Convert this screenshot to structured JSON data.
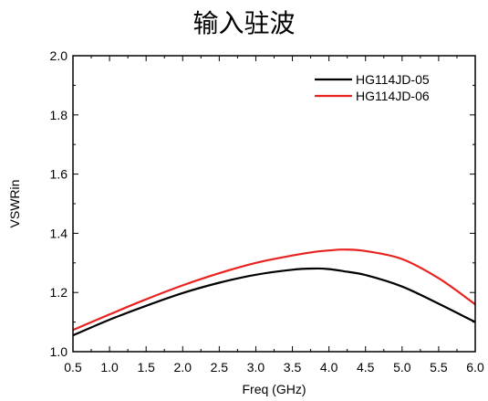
{
  "chart_data": {
    "type": "line",
    "title": "输入驻波",
    "xlabel": "Freq (GHz)",
    "ylabel": "VSWRin",
    "xlim": [
      0.5,
      6.0
    ],
    "ylim": [
      1.0,
      2.0
    ],
    "x_ticks": [
      "0.5",
      "1.0",
      "1.5",
      "2.0",
      "2.5",
      "3.0",
      "3.5",
      "4.0",
      "4.5",
      "5.0",
      "5.5",
      "6.0"
    ],
    "y_ticks": [
      "1.0",
      "1.2",
      "1.4",
      "1.6",
      "1.8",
      "2.0"
    ],
    "grid": false,
    "legend_position": "top-right",
    "x": [
      0.5,
      1.0,
      1.5,
      2.0,
      2.5,
      3.0,
      3.5,
      3.8,
      4.0,
      4.2,
      4.5,
      5.0,
      5.5,
      6.0
    ],
    "series": [
      {
        "name": "HG114JD-05",
        "color": "#000000",
        "values": [
          1.055,
          1.108,
          1.155,
          1.198,
          1.233,
          1.26,
          1.277,
          1.281,
          1.279,
          1.272,
          1.259,
          1.22,
          1.162,
          1.1
        ]
      },
      {
        "name": "HG114JD-06",
        "color": "#e8231f",
        "values": [
          1.073,
          1.126,
          1.177,
          1.224,
          1.265,
          1.3,
          1.325,
          1.337,
          1.342,
          1.345,
          1.34,
          1.313,
          1.248,
          1.16
        ]
      }
    ]
  }
}
